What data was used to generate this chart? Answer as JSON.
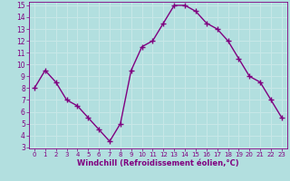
{
  "x": [
    0,
    1,
    2,
    3,
    4,
    5,
    6,
    7,
    8,
    9,
    10,
    11,
    12,
    13,
    14,
    15,
    16,
    17,
    18,
    19,
    20,
    21,
    22,
    23
  ],
  "y": [
    8,
    9.5,
    8.5,
    7,
    6.5,
    5.5,
    4.5,
    3.5,
    5,
    9.5,
    11.5,
    12,
    13.5,
    15,
    15,
    14.5,
    13.5,
    13,
    12,
    10.5,
    9,
    8.5,
    7,
    5.5
  ],
  "line_color": "#800080",
  "marker": "+",
  "marker_size": 4,
  "line_width": 1.0,
  "bg_color": "#b2dfdf",
  "grid_color": "#c8e8e8",
  "xlabel": "Windchill (Refroidissement éolien,°C)",
  "xlabel_color": "#800080",
  "tick_color": "#800080",
  "ylim": [
    3,
    15
  ],
  "xlim": [
    -0.5,
    23.5
  ],
  "yticks": [
    3,
    4,
    5,
    6,
    7,
    8,
    9,
    10,
    11,
    12,
    13,
    14,
    15
  ],
  "xticks": [
    0,
    1,
    2,
    3,
    4,
    5,
    6,
    7,
    8,
    9,
    10,
    11,
    12,
    13,
    14,
    15,
    16,
    17,
    18,
    19,
    20,
    21,
    22,
    23
  ]
}
